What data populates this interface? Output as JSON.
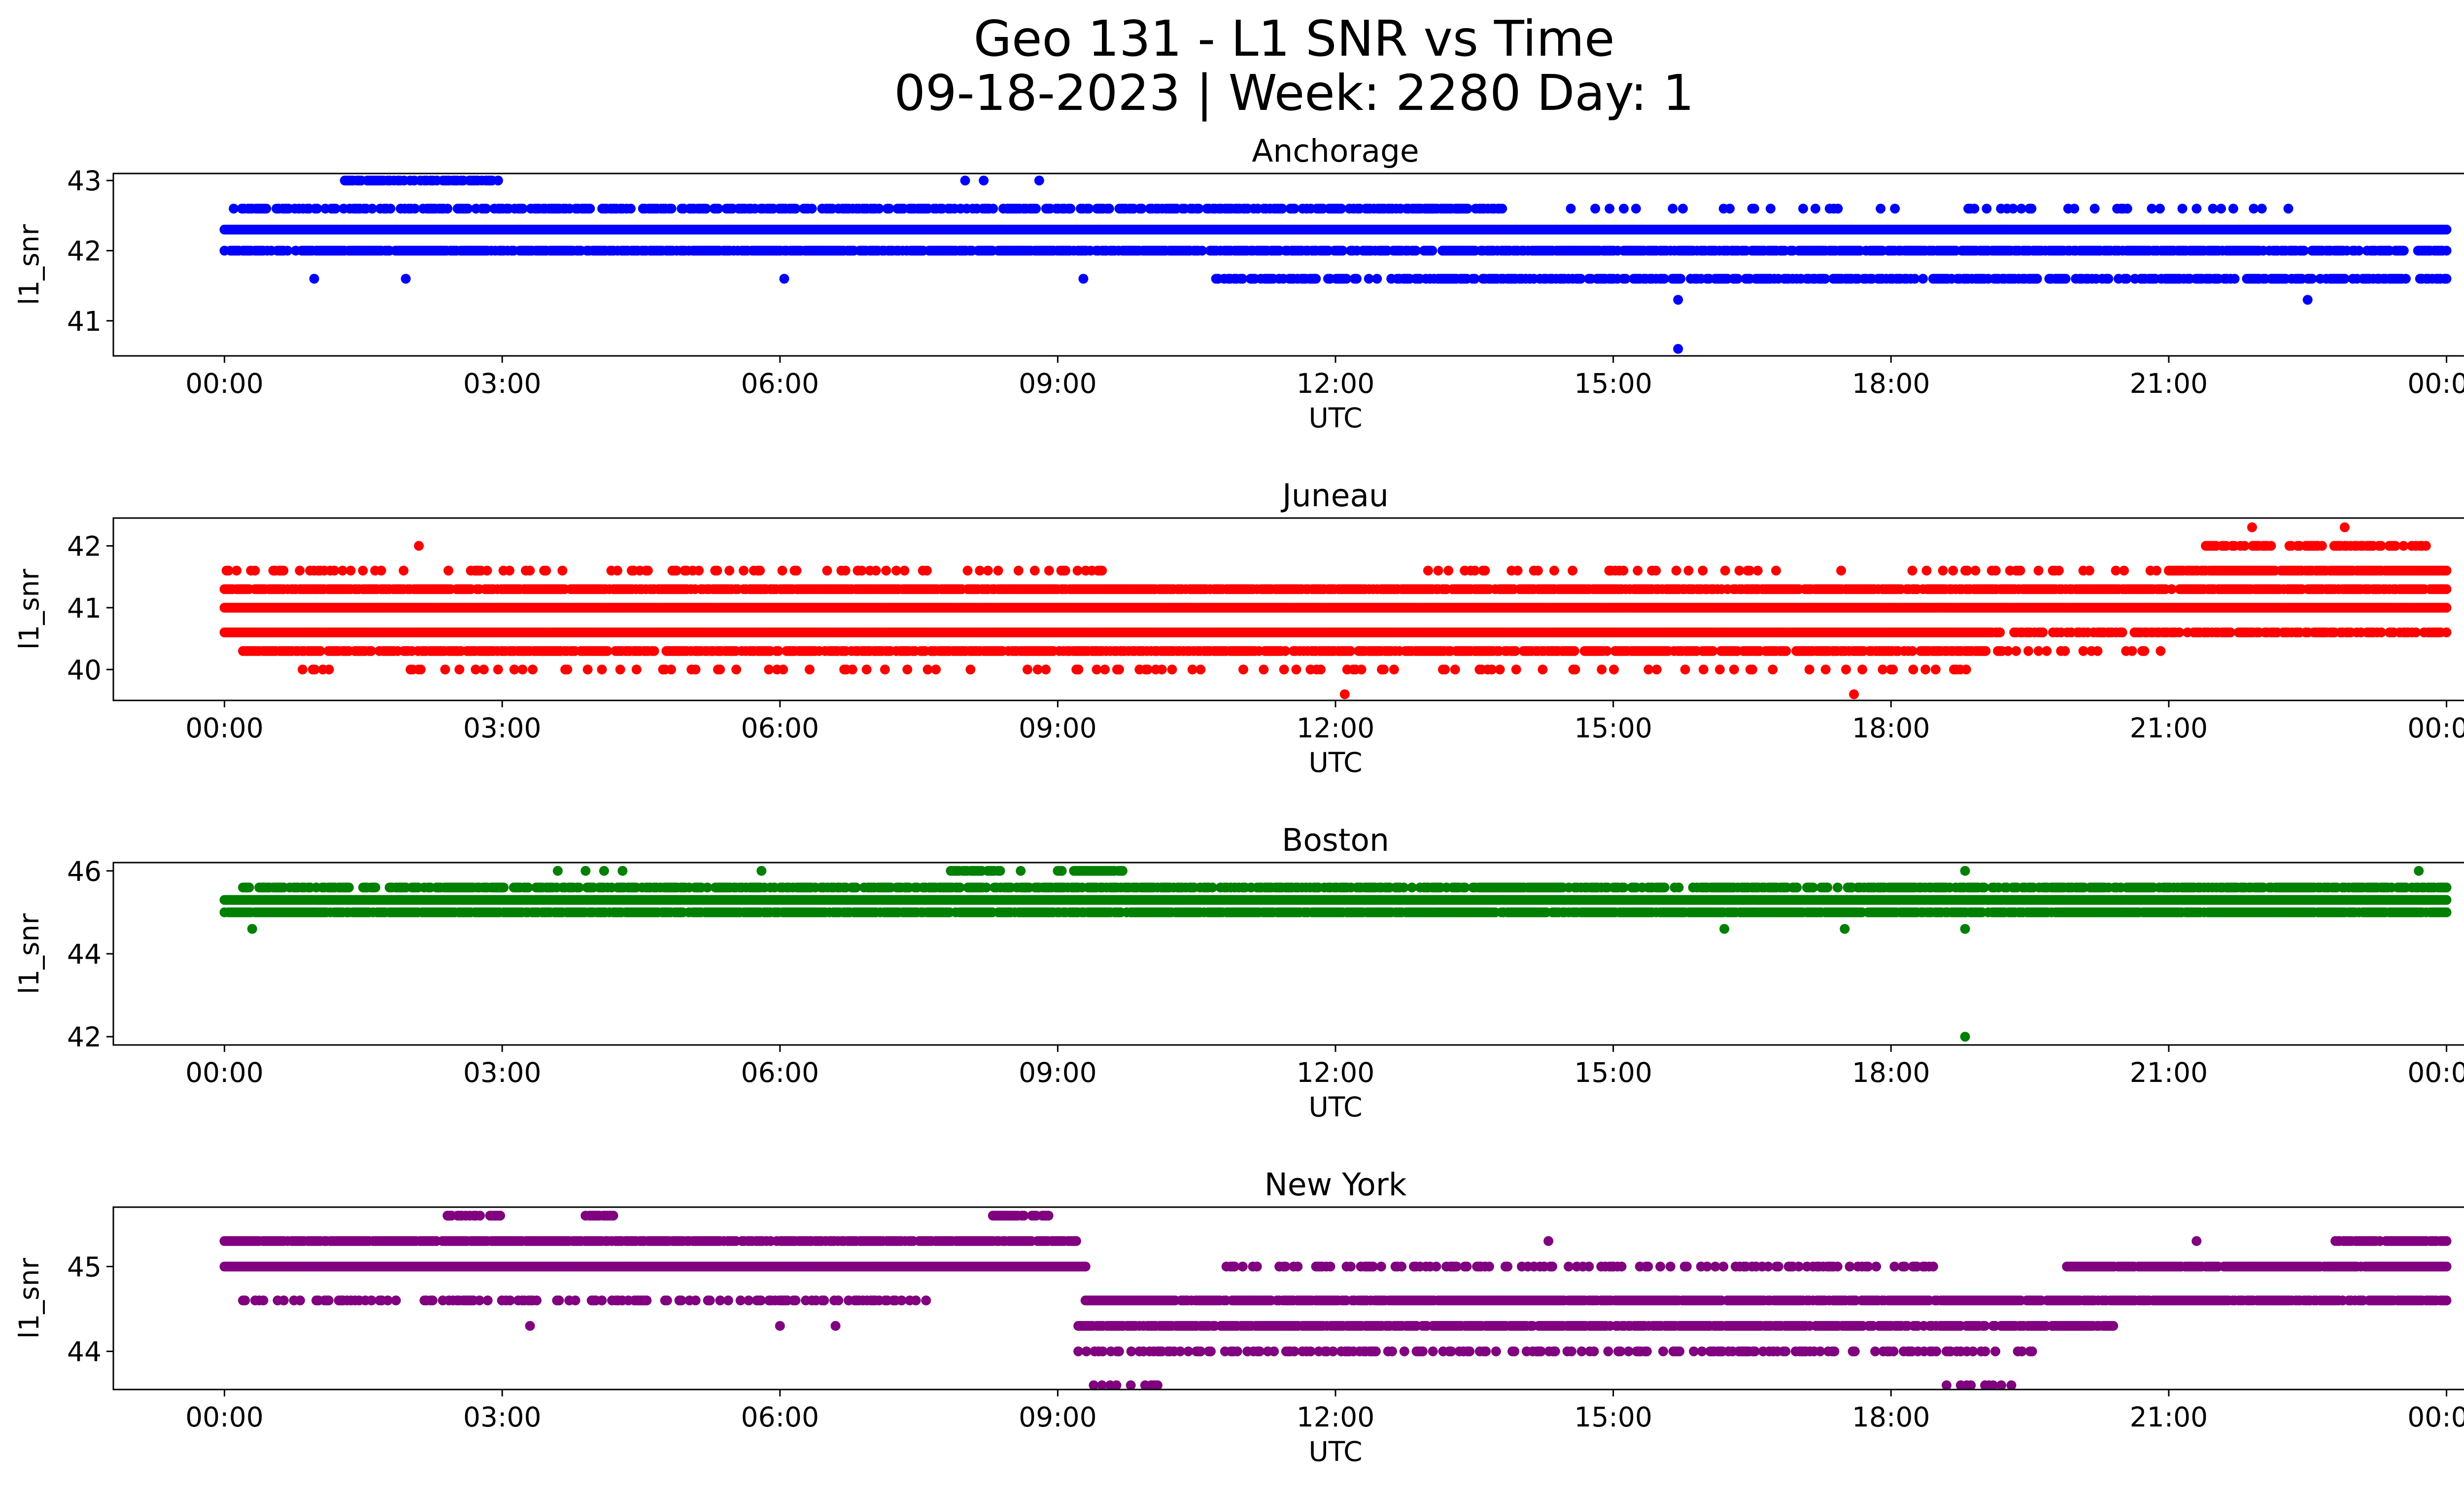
{
  "figure": {
    "title_line1": "Geo 131 - L1 SNR vs Time",
    "title_line2": "09-18-2023 | Week: 2280 Day: 1"
  },
  "chart_data": [
    {
      "type": "scatter",
      "title": "Anchorage",
      "xlabel": "UTC",
      "ylabel": "l1_snr",
      "color": "#0000ff",
      "x_unit": "hours",
      "xlim": [
        -1.2,
        25.2
      ],
      "ylim": [
        40.5,
        43.1
      ],
      "xticks": [
        0,
        3,
        6,
        9,
        12,
        15,
        18,
        21,
        24
      ],
      "xtick_labels": [
        "00:00",
        "03:00",
        "06:00",
        "09:00",
        "12:00",
        "15:00",
        "18:00",
        "21:00",
        "00:00"
      ],
      "yticks": [
        41,
        42,
        43
      ],
      "bands": [
        {
          "y": 42.3,
          "start": 0,
          "end": 24,
          "fill": 1.0
        },
        {
          "y": 42.0,
          "start": 0,
          "end": 24,
          "fill": 0.8
        },
        {
          "y": 42.6,
          "start": 0.1,
          "end": 13.8,
          "fill": 0.6
        },
        {
          "y": 41.6,
          "start": 10.6,
          "end": 24,
          "fill": 0.6
        },
        {
          "y": 42.6,
          "start": 13.0,
          "end": 22.6,
          "fill": 0.12
        },
        {
          "y": 43.0,
          "start": 1.3,
          "end": 3.0,
          "fill": 0.7
        },
        {
          "y": 41.6,
          "start": 0.2,
          "end": 10.2,
          "fill": 0.015
        }
      ],
      "points": [
        [
          8.0,
          43.0
        ],
        [
          8.2,
          43.0
        ],
        [
          8.8,
          43.0
        ],
        [
          15.7,
          41.3
        ],
        [
          15.7,
          40.6
        ],
        [
          22.5,
          41.3
        ]
      ]
    },
    {
      "type": "scatter",
      "title": "Juneau",
      "xlabel": "UTC",
      "ylabel": "l1_snr",
      "color": "#ff0000",
      "x_unit": "hours",
      "xlim": [
        -1.2,
        25.2
      ],
      "ylim": [
        39.5,
        42.45
      ],
      "xticks": [
        0,
        3,
        6,
        9,
        12,
        15,
        18,
        21,
        24
      ],
      "xtick_labels": [
        "00:00",
        "03:00",
        "06:00",
        "09:00",
        "12:00",
        "15:00",
        "18:00",
        "21:00",
        "00:00"
      ],
      "yticks": [
        40,
        41,
        42
      ],
      "bands": [
        {
          "y": 41.0,
          "start": 0,
          "end": 24,
          "fill": 1.0
        },
        {
          "y": 40.6,
          "start": 0,
          "end": 19.0,
          "fill": 1.0
        },
        {
          "y": 40.6,
          "start": 19.0,
          "end": 24,
          "fill": 0.6
        },
        {
          "y": 41.3,
          "start": 0,
          "end": 24,
          "fill": 0.85
        },
        {
          "y": 40.3,
          "start": 0.2,
          "end": 19.0,
          "fill": 0.75
        },
        {
          "y": 41.6,
          "start": 0,
          "end": 9.5,
          "fill": 0.2
        },
        {
          "y": 41.6,
          "start": 21.0,
          "end": 24,
          "fill": 0.95
        },
        {
          "y": 41.6,
          "start": 13.0,
          "end": 21.0,
          "fill": 0.15
        },
        {
          "y": 40.0,
          "start": 0.8,
          "end": 18.9,
          "fill": 0.12
        },
        {
          "y": 42.0,
          "start": 21.4,
          "end": 23.8,
          "fill": 0.55
        },
        {
          "y": 40.3,
          "start": 19.0,
          "end": 21.0,
          "fill": 0.25
        }
      ],
      "points": [
        [
          2.1,
          42.0
        ],
        [
          12.1,
          39.6
        ],
        [
          17.6,
          39.6
        ],
        [
          21.9,
          42.3
        ],
        [
          22.9,
          42.3
        ]
      ]
    },
    {
      "type": "scatter",
      "title": "Boston",
      "xlabel": "UTC",
      "ylabel": "l1_snr",
      "color": "#008000",
      "x_unit": "hours",
      "xlim": [
        -1.2,
        25.2
      ],
      "ylim": [
        41.8,
        46.2
      ],
      "xticks": [
        0,
        3,
        6,
        9,
        12,
        15,
        18,
        21,
        24
      ],
      "xtick_labels": [
        "00:00",
        "03:00",
        "06:00",
        "09:00",
        "12:00",
        "15:00",
        "18:00",
        "21:00",
        "00:00"
      ],
      "yticks": [
        42,
        44,
        46
      ],
      "bands": [
        {
          "y": 45.3,
          "start": 0,
          "end": 24,
          "fill": 1.0
        },
        {
          "y": 45.0,
          "start": 0,
          "end": 24,
          "fill": 0.9
        },
        {
          "y": 45.6,
          "start": 0.2,
          "end": 24,
          "fill": 0.7
        },
        {
          "y": 46.0,
          "start": 7.8,
          "end": 8.4,
          "fill": 0.85
        },
        {
          "y": 46.0,
          "start": 9.0,
          "end": 9.7,
          "fill": 0.85
        }
      ],
      "points": [
        [
          0.3,
          44.6
        ],
        [
          3.6,
          46.0
        ],
        [
          3.9,
          46.0
        ],
        [
          4.1,
          46.0
        ],
        [
          4.3,
          46.0
        ],
        [
          5.8,
          46.0
        ],
        [
          8.6,
          46.0
        ],
        [
          16.2,
          44.6
        ],
        [
          17.5,
          44.6
        ],
        [
          18.8,
          46.0
        ],
        [
          18.8,
          44.6
        ],
        [
          18.8,
          42.0
        ],
        [
          23.7,
          46.0
        ]
      ]
    },
    {
      "type": "scatter",
      "title": "New York",
      "xlabel": "UTC",
      "ylabel": "l1_snr",
      "color": "#800080",
      "x_unit": "hours",
      "xlim": [
        -1.2,
        25.2
      ],
      "ylim": [
        43.55,
        45.7
      ],
      "xticks": [
        0,
        3,
        6,
        9,
        12,
        15,
        18,
        21,
        24
      ],
      "xtick_labels": [
        "00:00",
        "03:00",
        "06:00",
        "09:00",
        "12:00",
        "15:00",
        "18:00",
        "21:00",
        "00:00"
      ],
      "yticks": [
        44,
        45
      ],
      "bands": [
        {
          "y": 45.3,
          "start": 0,
          "end": 9.2,
          "fill": 0.85
        },
        {
          "y": 45.0,
          "start": 0,
          "end": 9.3,
          "fill": 1.0
        },
        {
          "y": 44.6,
          "start": 0.2,
          "end": 7.6,
          "fill": 0.35
        },
        {
          "y": 44.6,
          "start": 9.3,
          "end": 24,
          "fill": 0.9
        },
        {
          "y": 44.3,
          "start": 9.2,
          "end": 20.4,
          "fill": 0.85
        },
        {
          "y": 44.0,
          "start": 9.2,
          "end": 19.7,
          "fill": 0.35
        },
        {
          "y": 45.0,
          "start": 10.8,
          "end": 18.5,
          "fill": 0.35
        },
        {
          "y": 45.0,
          "start": 19.9,
          "end": 24,
          "fill": 0.95
        },
        {
          "y": 45.3,
          "start": 22.8,
          "end": 24,
          "fill": 0.9
        },
        {
          "y": 45.6,
          "start": 2.3,
          "end": 3.0,
          "fill": 0.6
        },
        {
          "y": 45.6,
          "start": 3.9,
          "end": 4.2,
          "fill": 0.8
        },
        {
          "y": 45.6,
          "start": 8.3,
          "end": 8.9,
          "fill": 0.7
        },
        {
          "y": 43.6,
          "start": 9.3,
          "end": 10.1,
          "fill": 0.2
        },
        {
          "y": 43.6,
          "start": 18.6,
          "end": 19.3,
          "fill": 0.3
        }
      ],
      "points": [
        [
          3.3,
          44.3
        ],
        [
          6.0,
          44.3
        ],
        [
          6.6,
          44.3
        ],
        [
          14.3,
          45.3
        ],
        [
          21.3,
          45.3
        ]
      ]
    }
  ]
}
